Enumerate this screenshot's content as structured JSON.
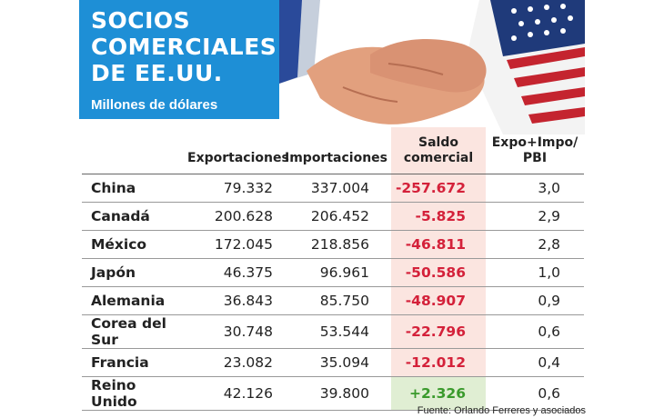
{
  "title": {
    "lines": [
      "SOCIOS",
      "COMERCIALES",
      "DE EE.UU."
    ],
    "subtitle": "Millones de dólares"
  },
  "chart_data": {
    "type": "table",
    "columns": [
      "",
      "Exportaciones",
      "Importaciones",
      "Saldo comercial",
      "Expo+Impo/ PBI"
    ],
    "rows": [
      {
        "pais": "China",
        "exportaciones": "79.332",
        "importaciones": "337.004",
        "saldo": "-257.672",
        "ratio": "3,0"
      },
      {
        "pais": "Canadá",
        "exportaciones": "200.628",
        "importaciones": "206.452",
        "saldo": "-5.825",
        "ratio": "2,9"
      },
      {
        "pais": "México",
        "exportaciones": "172.045",
        "importaciones": "218.856",
        "saldo": "-46.811",
        "ratio": "2,8"
      },
      {
        "pais": "Japón",
        "exportaciones": "46.375",
        "importaciones": "96.961",
        "saldo": "-50.586",
        "ratio": "1,0"
      },
      {
        "pais": "Alemania",
        "exportaciones": "36.843",
        "importaciones": "85.750",
        "saldo": "-48.907",
        "ratio": "0,9"
      },
      {
        "pais": "Corea del Sur",
        "exportaciones": "30.748",
        "importaciones": "53.544",
        "saldo": "-22.796",
        "ratio": "0,6"
      },
      {
        "pais": "Francia",
        "exportaciones": "23.082",
        "importaciones": "35.094",
        "saldo": "-12.012",
        "ratio": "0,4"
      },
      {
        "pais": "Reino Unido",
        "exportaciones": "42.126",
        "importaciones": "39.800",
        "saldo": "+2.326",
        "ratio": "0,6"
      }
    ]
  },
  "colors": {
    "title_bg": "#1e8fd6",
    "negative": "#d4213a",
    "positive": "#3a9a2c",
    "negative_bg": "#fbe5e0",
    "positive_bg": "#e0eed3"
  },
  "source": "Fuente: Orlando Ferreres y asociados",
  "illustration": "handshake-image"
}
